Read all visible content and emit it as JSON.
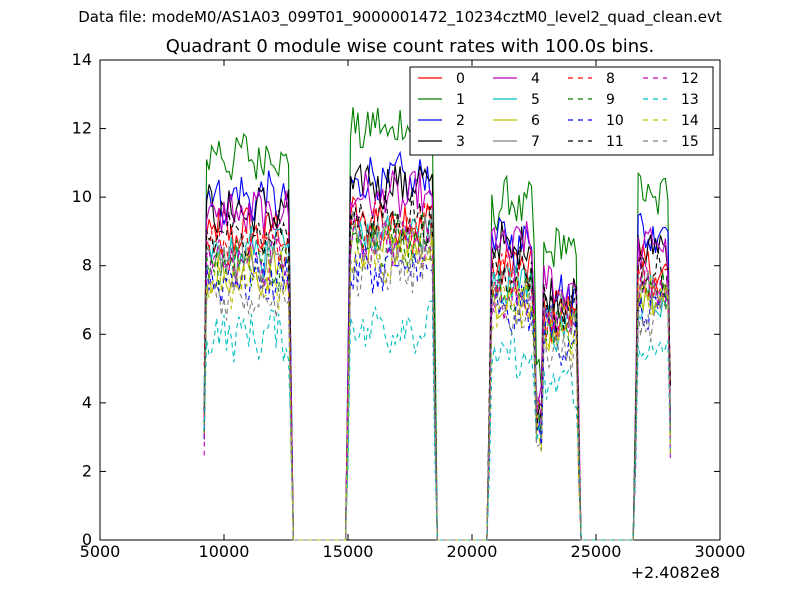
{
  "figure": {
    "suptitle": "Data file: modeM0/AS1A03_099T01_9000001472_10234cztM0_level2_quad_clean.evt"
  },
  "chart_data": {
    "type": "line",
    "title": "Quadrant 0 module wise count rates with 100.0s bins.",
    "xlabel": "",
    "ylabel": "",
    "x_offset_label": "+2.4082e8",
    "xlim": [
      5000,
      30000
    ],
    "ylim": [
      0,
      14
    ],
    "xticks": [
      5000,
      10000,
      15000,
      20000,
      25000,
      30000
    ],
    "yticks": [
      0,
      2,
      4,
      6,
      8,
      10,
      12,
      14
    ],
    "grid": false,
    "legend_position": "top-right",
    "legend_columns": 4,
    "segments": [
      {
        "start": 9200,
        "end": 12700
      },
      {
        "start": 15000,
        "end": 18500
      },
      {
        "start": 20700,
        "end": 24300
      },
      {
        "start": 26600,
        "end": 28000
      }
    ],
    "gap_value": 0,
    "series": [
      {
        "name": "0",
        "color": "#ff0000",
        "dash": "solid",
        "levels": [
          9.0,
          9.3,
          8.0,
          6.5,
          7.8
        ]
      },
      {
        "name": "1",
        "color": "#008000",
        "dash": "solid",
        "levels": [
          11.2,
          12.0,
          9.8,
          8.5,
          10.0
        ]
      },
      {
        "name": "2",
        "color": "#0000ff",
        "dash": "solid",
        "levels": [
          10.0,
          10.5,
          8.7,
          7.2,
          9.0
        ]
      },
      {
        "name": "3",
        "color": "#000000",
        "dash": "solid",
        "levels": [
          9.6,
          10.4,
          8.5,
          7.0,
          8.5
        ]
      },
      {
        "name": "4",
        "color": "#bf00bf",
        "dash": "solid",
        "levels": [
          9.5,
          10.0,
          8.6,
          7.4,
          8.6
        ]
      },
      {
        "name": "5",
        "color": "#00bfbf",
        "dash": "solid",
        "levels": [
          8.4,
          9.0,
          7.6,
          6.3,
          7.2
        ]
      },
      {
        "name": "6",
        "color": "#bfbf00",
        "dash": "solid",
        "levels": [
          7.8,
          8.6,
          7.2,
          6.2,
          7.0
        ]
      },
      {
        "name": "7",
        "color": "#808080",
        "dash": "solid",
        "levels": [
          8.2,
          8.9,
          7.5,
          6.5,
          7.4
        ]
      },
      {
        "name": "8",
        "color": "#ff0000",
        "dash": "dashed",
        "levels": [
          8.6,
          9.1,
          7.7,
          6.6,
          7.6
        ]
      },
      {
        "name": "9",
        "color": "#008000",
        "dash": "dashed",
        "levels": [
          8.0,
          8.8,
          7.3,
          6.1,
          7.1
        ]
      },
      {
        "name": "10",
        "color": "#0000ff",
        "dash": "dashed",
        "levels": [
          7.6,
          7.9,
          6.6,
          5.9,
          6.7
        ]
      },
      {
        "name": "11",
        "color": "#000000",
        "dash": "dashed",
        "levels": [
          8.9,
          9.4,
          7.9,
          6.8,
          7.9
        ]
      },
      {
        "name": "12",
        "color": "#bf00bf",
        "dash": "dashed",
        "levels": [
          8.1,
          8.7,
          7.2,
          6.3,
          7.3
        ]
      },
      {
        "name": "13",
        "color": "#00bfbf",
        "dash": "dashed",
        "levels": [
          6.0,
          6.2,
          5.3,
          4.6,
          5.5
        ]
      },
      {
        "name": "14",
        "color": "#bfbf00",
        "dash": "dashed",
        "levels": [
          7.5,
          8.2,
          6.9,
          5.9,
          6.9
        ]
      },
      {
        "name": "15",
        "color": "#808080",
        "dash": "dashed",
        "levels": [
          7.2,
          7.9,
          6.6,
          5.6,
          6.4
        ]
      }
    ]
  }
}
